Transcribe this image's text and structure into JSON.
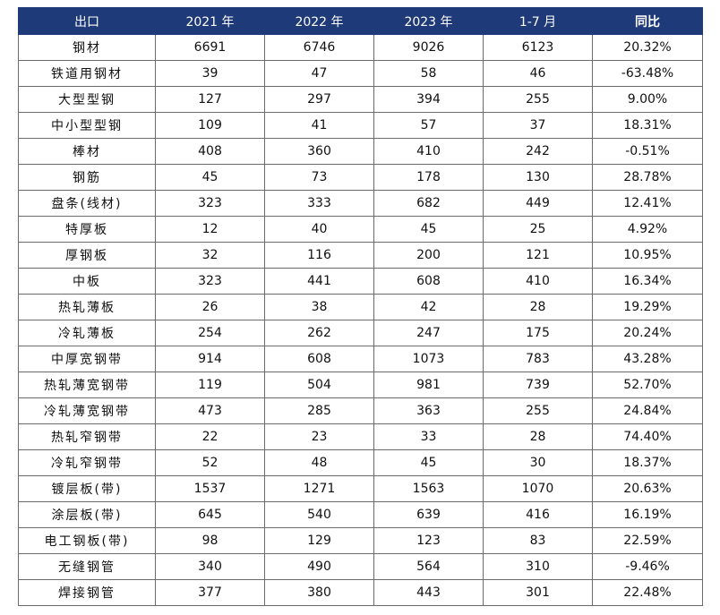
{
  "table": {
    "headers": [
      "出口",
      "2021 年",
      "2022 年",
      "2023 年",
      "1-7 月",
      "同比"
    ],
    "rows": [
      [
        "钢材",
        "6691",
        "6746",
        "9026",
        "6123",
        "20.32%"
      ],
      [
        "铁道用钢材",
        "39",
        "47",
        "58",
        "46",
        "-63.48%"
      ],
      [
        "大型型钢",
        "127",
        "297",
        "394",
        "255",
        "9.00%"
      ],
      [
        "中小型型钢",
        "109",
        "41",
        "57",
        "37",
        "18.31%"
      ],
      [
        "棒材",
        "408",
        "360",
        "410",
        "242",
        "-0.51%"
      ],
      [
        "钢筋",
        "45",
        "73",
        "178",
        "130",
        "28.78%"
      ],
      [
        "盘条(线材)",
        "323",
        "333",
        "682",
        "449",
        "12.41%"
      ],
      [
        "特厚板",
        "12",
        "40",
        "45",
        "25",
        "4.92%"
      ],
      [
        "厚钢板",
        "32",
        "116",
        "200",
        "121",
        "10.95%"
      ],
      [
        "中板",
        "323",
        "441",
        "608",
        "410",
        "16.34%"
      ],
      [
        "热轧薄板",
        "26",
        "38",
        "42",
        "28",
        "19.29%"
      ],
      [
        "冷轧薄板",
        "254",
        "262",
        "247",
        "175",
        "20.24%"
      ],
      [
        "中厚宽钢带",
        "914",
        "608",
        "1073",
        "783",
        "43.28%"
      ],
      [
        "热轧薄宽钢带",
        "119",
        "504",
        "981",
        "739",
        "52.70%"
      ],
      [
        "冷轧薄宽钢带",
        "473",
        "285",
        "363",
        "255",
        "24.84%"
      ],
      [
        "热轧窄钢带",
        "22",
        "23",
        "33",
        "28",
        "74.40%"
      ],
      [
        "冷轧窄钢带",
        "52",
        "48",
        "45",
        "30",
        "18.37%"
      ],
      [
        "镀层板(带)",
        "1537",
        "1271",
        "1563",
        "1070",
        "20.63%"
      ],
      [
        "涂层板(带)",
        "645",
        "540",
        "639",
        "416",
        "16.19%"
      ],
      [
        "电工钢板(带)",
        "98",
        "129",
        "123",
        "83",
        "22.59%"
      ],
      [
        "无缝钢管",
        "340",
        "490",
        "564",
        "310",
        "-9.46%"
      ],
      [
        "焊接钢管",
        "377",
        "380",
        "443",
        "301",
        "22.48%"
      ]
    ]
  },
  "colors": {
    "header_bg": "#1f3a78",
    "header_text": "#ffffff",
    "border": "#6b6b6b"
  }
}
